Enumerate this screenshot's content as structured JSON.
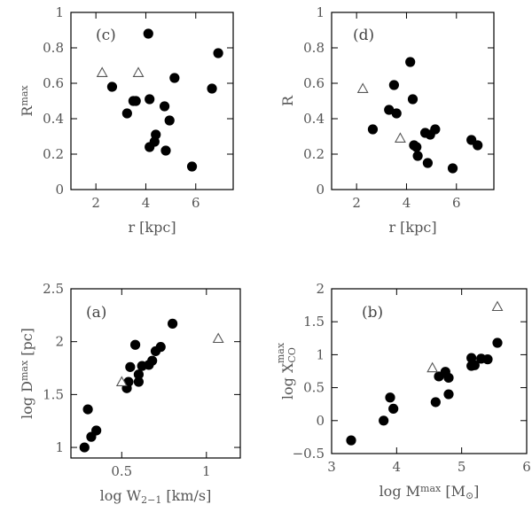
{
  "chart_data": [
    {
      "type": "scatter",
      "id": "c",
      "panel_label": "(c)",
      "xlim": [
        1,
        7.5
      ],
      "ylim": [
        0,
        1
      ],
      "xticks": [
        2,
        4,
        6
      ],
      "yticks": [
        0,
        0.2,
        0.4,
        0.6,
        0.8,
        1
      ],
      "xtick_labels": [
        "2",
        "4",
        "6"
      ],
      "ytick_labels": [
        "0",
        "0.2",
        "0.4",
        "0.6",
        "0.8",
        "1"
      ],
      "xlabel_parts": [
        {
          "t": "r [kpc]"
        }
      ],
      "ylabel_parts": [
        {
          "t": "R"
        },
        {
          "t": "max",
          "sup": true
        }
      ],
      "points": [
        [
          2.65,
          0.58
        ],
        [
          3.25,
          0.43
        ],
        [
          3.5,
          0.5
        ],
        [
          3.6,
          0.5
        ],
        [
          4.1,
          0.88
        ],
        [
          4.15,
          0.51
        ],
        [
          4.15,
          0.24
        ],
        [
          4.35,
          0.27
        ],
        [
          4.4,
          0.31
        ],
        [
          4.75,
          0.47
        ],
        [
          4.8,
          0.22
        ],
        [
          4.95,
          0.39
        ],
        [
          5.15,
          0.63
        ],
        [
          5.85,
          0.13
        ],
        [
          6.65,
          0.57
        ],
        [
          6.9,
          0.77
        ]
      ],
      "open_points": [
        [
          2.25,
          0.66
        ],
        [
          3.7,
          0.66
        ]
      ]
    },
    {
      "type": "scatter",
      "id": "d",
      "panel_label": "(d)",
      "xlim": [
        1,
        7.5
      ],
      "ylim": [
        0,
        1
      ],
      "xticks": [
        2,
        4,
        6
      ],
      "yticks": [
        0,
        0.2,
        0.4,
        0.6,
        0.8,
        1
      ],
      "xtick_labels": [
        "2",
        "4",
        "6"
      ],
      "ytick_labels": [
        "0",
        "0.2",
        "0.4",
        "0.6",
        "0.8",
        "1"
      ],
      "xlabel_parts": [
        {
          "t": "r [kpc]"
        }
      ],
      "ylabel_parts": [
        {
          "t": "R"
        }
      ],
      "points": [
        [
          2.65,
          0.34
        ],
        [
          3.3,
          0.45
        ],
        [
          3.5,
          0.59
        ],
        [
          3.6,
          0.43
        ],
        [
          4.15,
          0.72
        ],
        [
          4.25,
          0.51
        ],
        [
          4.3,
          0.25
        ],
        [
          4.4,
          0.24
        ],
        [
          4.45,
          0.19
        ],
        [
          4.75,
          0.32
        ],
        [
          4.85,
          0.15
        ],
        [
          4.95,
          0.31
        ],
        [
          5.15,
          0.34
        ],
        [
          5.85,
          0.12
        ],
        [
          6.6,
          0.28
        ],
        [
          6.85,
          0.25
        ]
      ],
      "open_points": [
        [
          2.25,
          0.57
        ],
        [
          3.75,
          0.29
        ]
      ]
    },
    {
      "type": "scatter",
      "id": "a",
      "panel_label": "(a)",
      "xlim": [
        0.2,
        1.2
      ],
      "ylim": [
        0.9,
        2.5
      ],
      "xticks": [
        0.5,
        1
      ],
      "yticks": [
        1,
        1.5,
        2,
        2.5
      ],
      "xtick_labels": [
        "0.5",
        "1"
      ],
      "ytick_labels": [
        "1",
        "1.5",
        "2",
        "2.5"
      ],
      "xlabel_parts": [
        {
          "t": "log W"
        },
        {
          "t": "2−1",
          "sub": true
        },
        {
          "t": " [km/s]"
        }
      ],
      "ylabel_parts": [
        {
          "t": "log D"
        },
        {
          "t": "max",
          "sup": true
        },
        {
          "t": " [pc]"
        }
      ],
      "points": [
        [
          0.28,
          1.0
        ],
        [
          0.3,
          1.36
        ],
        [
          0.32,
          1.1
        ],
        [
          0.35,
          1.16
        ],
        [
          0.53,
          1.56
        ],
        [
          0.54,
          1.62
        ],
        [
          0.55,
          1.76
        ],
        [
          0.58,
          1.97
        ],
        [
          0.6,
          1.62
        ],
        [
          0.6,
          1.69
        ],
        [
          0.62,
          1.77
        ],
        [
          0.66,
          1.78
        ],
        [
          0.68,
          1.82
        ],
        [
          0.7,
          1.91
        ],
        [
          0.73,
          1.95
        ],
        [
          0.8,
          2.17
        ]
      ],
      "open_points": [
        [
          0.5,
          1.62
        ],
        [
          1.07,
          2.03
        ]
      ]
    },
    {
      "type": "scatter",
      "id": "b",
      "panel_label": "(b)",
      "xlim": [
        3,
        6
      ],
      "ylim": [
        -0.5,
        2
      ],
      "xticks": [
        3,
        4,
        5,
        6
      ],
      "yticks": [
        -0.5,
        0,
        0.5,
        1,
        1.5,
        2
      ],
      "xtick_labels": [
        "3",
        "4",
        "5",
        "6"
      ],
      "ytick_labels": [
        "−0.5",
        "0",
        "0.5",
        "1",
        "1.5",
        "2"
      ],
      "xlabel_parts": [
        {
          "t": "log M"
        },
        {
          "t": "max",
          "sup": true
        },
        {
          "t": " [M"
        },
        {
          "t": "⊙",
          "sub": true
        },
        {
          "t": "]"
        }
      ],
      "ylabel_parts": [
        {
          "t": "log X"
        },
        {
          "t": "CO",
          "sub": true
        },
        {
          "t": "max",
          "supover": true
        }
      ],
      "points": [
        [
          3.3,
          -0.3
        ],
        [
          3.8,
          0.0
        ],
        [
          3.9,
          0.35
        ],
        [
          3.95,
          0.18
        ],
        [
          4.6,
          0.28
        ],
        [
          4.65,
          0.67
        ],
        [
          4.75,
          0.74
        ],
        [
          4.8,
          0.4
        ],
        [
          4.8,
          0.65
        ],
        [
          5.15,
          0.95
        ],
        [
          5.15,
          0.83
        ],
        [
          5.2,
          0.84
        ],
        [
          5.3,
          0.94
        ],
        [
          5.4,
          0.93
        ],
        [
          5.55,
          1.18
        ]
      ],
      "open_points": [
        [
          4.55,
          0.8
        ],
        [
          5.55,
          1.73
        ]
      ]
    }
  ]
}
